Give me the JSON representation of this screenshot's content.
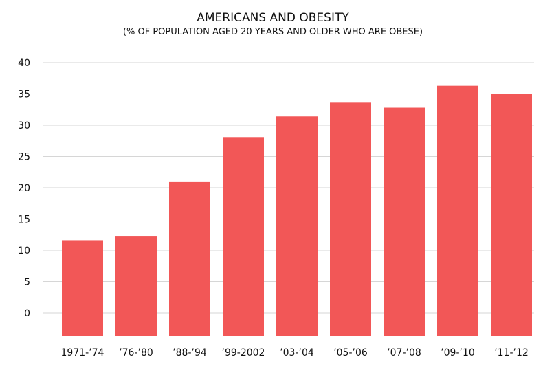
{
  "chart_data": {
    "type": "bar",
    "title": "AMERICANS AND OBESITY",
    "subtitle": "(% OF POPULATION AGED 20 YEARS AND OLDER WHO ARE OBESE)",
    "xlabel": "",
    "ylabel": "",
    "categories": [
      "1971-’74",
      "’76-’80",
      "’88-’94",
      "’99-2002",
      "’03-’04",
      "’05-’06",
      "’07-’08",
      "’09-’10",
      "’11-’12"
    ],
    "values": [
      11.6,
      12.3,
      21.0,
      28.1,
      31.4,
      33.7,
      32.8,
      36.3,
      35.0
    ],
    "yticks": [
      "0",
      "5",
      "10",
      "15",
      "20",
      "25",
      "30",
      "35",
      "40"
    ],
    "ytick_values": [
      0,
      5,
      10,
      15,
      20,
      25,
      30,
      35,
      40
    ],
    "ylim": [
      -3.8,
      40
    ],
    "grid": true,
    "bar_color": "#f25757"
  }
}
